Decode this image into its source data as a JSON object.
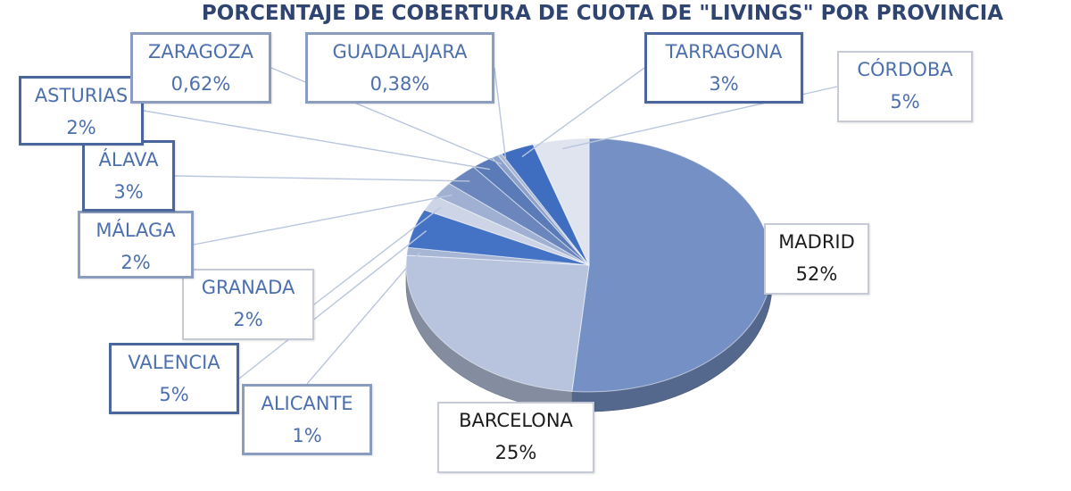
{
  "chart_data": {
    "type": "pie",
    "title": "PORCENTAJE DE COBERTURA DE CUOTA DE \"LIVINGS\" POR PROVINCIA",
    "three_d": true,
    "slices": [
      {
        "label": "MADRID",
        "value_label": "52%",
        "value": 52,
        "color": "#7590c4"
      },
      {
        "label": "BARCELONA",
        "value_label": "25%",
        "value": 25,
        "color": "#b8c4dd"
      },
      {
        "label": "ALICANTE",
        "value_label": "1%",
        "value": 1,
        "color": "#a7b6d5"
      },
      {
        "label": "VALENCIA",
        "value_label": "5%",
        "value": 5,
        "color": "#4472c4"
      },
      {
        "label": "GRANADA",
        "value_label": "2%",
        "value": 2,
        "color": "#ccd4e6"
      },
      {
        "label": "MÁLAGA",
        "value_label": "2%",
        "value": 2,
        "color": "#9fb0d3"
      },
      {
        "label": "ÁLAVA",
        "value_label": "3%",
        "value": 3,
        "color": "#6b86bd"
      },
      {
        "label": "ASTURIAS",
        "value_label": "2%",
        "value": 2,
        "color": "#5a7bb8"
      },
      {
        "label": "ZARAGOZA",
        "value_label": "0,62%",
        "value": 0.62,
        "color": "#8da1c9"
      },
      {
        "label": "GUADALAJARA",
        "value_label": "0,38%",
        "value": 0.38,
        "color": "#aab8d6"
      },
      {
        "label": "TARRAGONA",
        "value_label": "3%",
        "value": 3,
        "color": "#3f6dc0"
      },
      {
        "label": "CÓRDOBA",
        "value_label": "5%",
        "value": 5,
        "color": "#dfe4ef"
      }
    ],
    "legend": "none",
    "data_labels": "callouts"
  }
}
